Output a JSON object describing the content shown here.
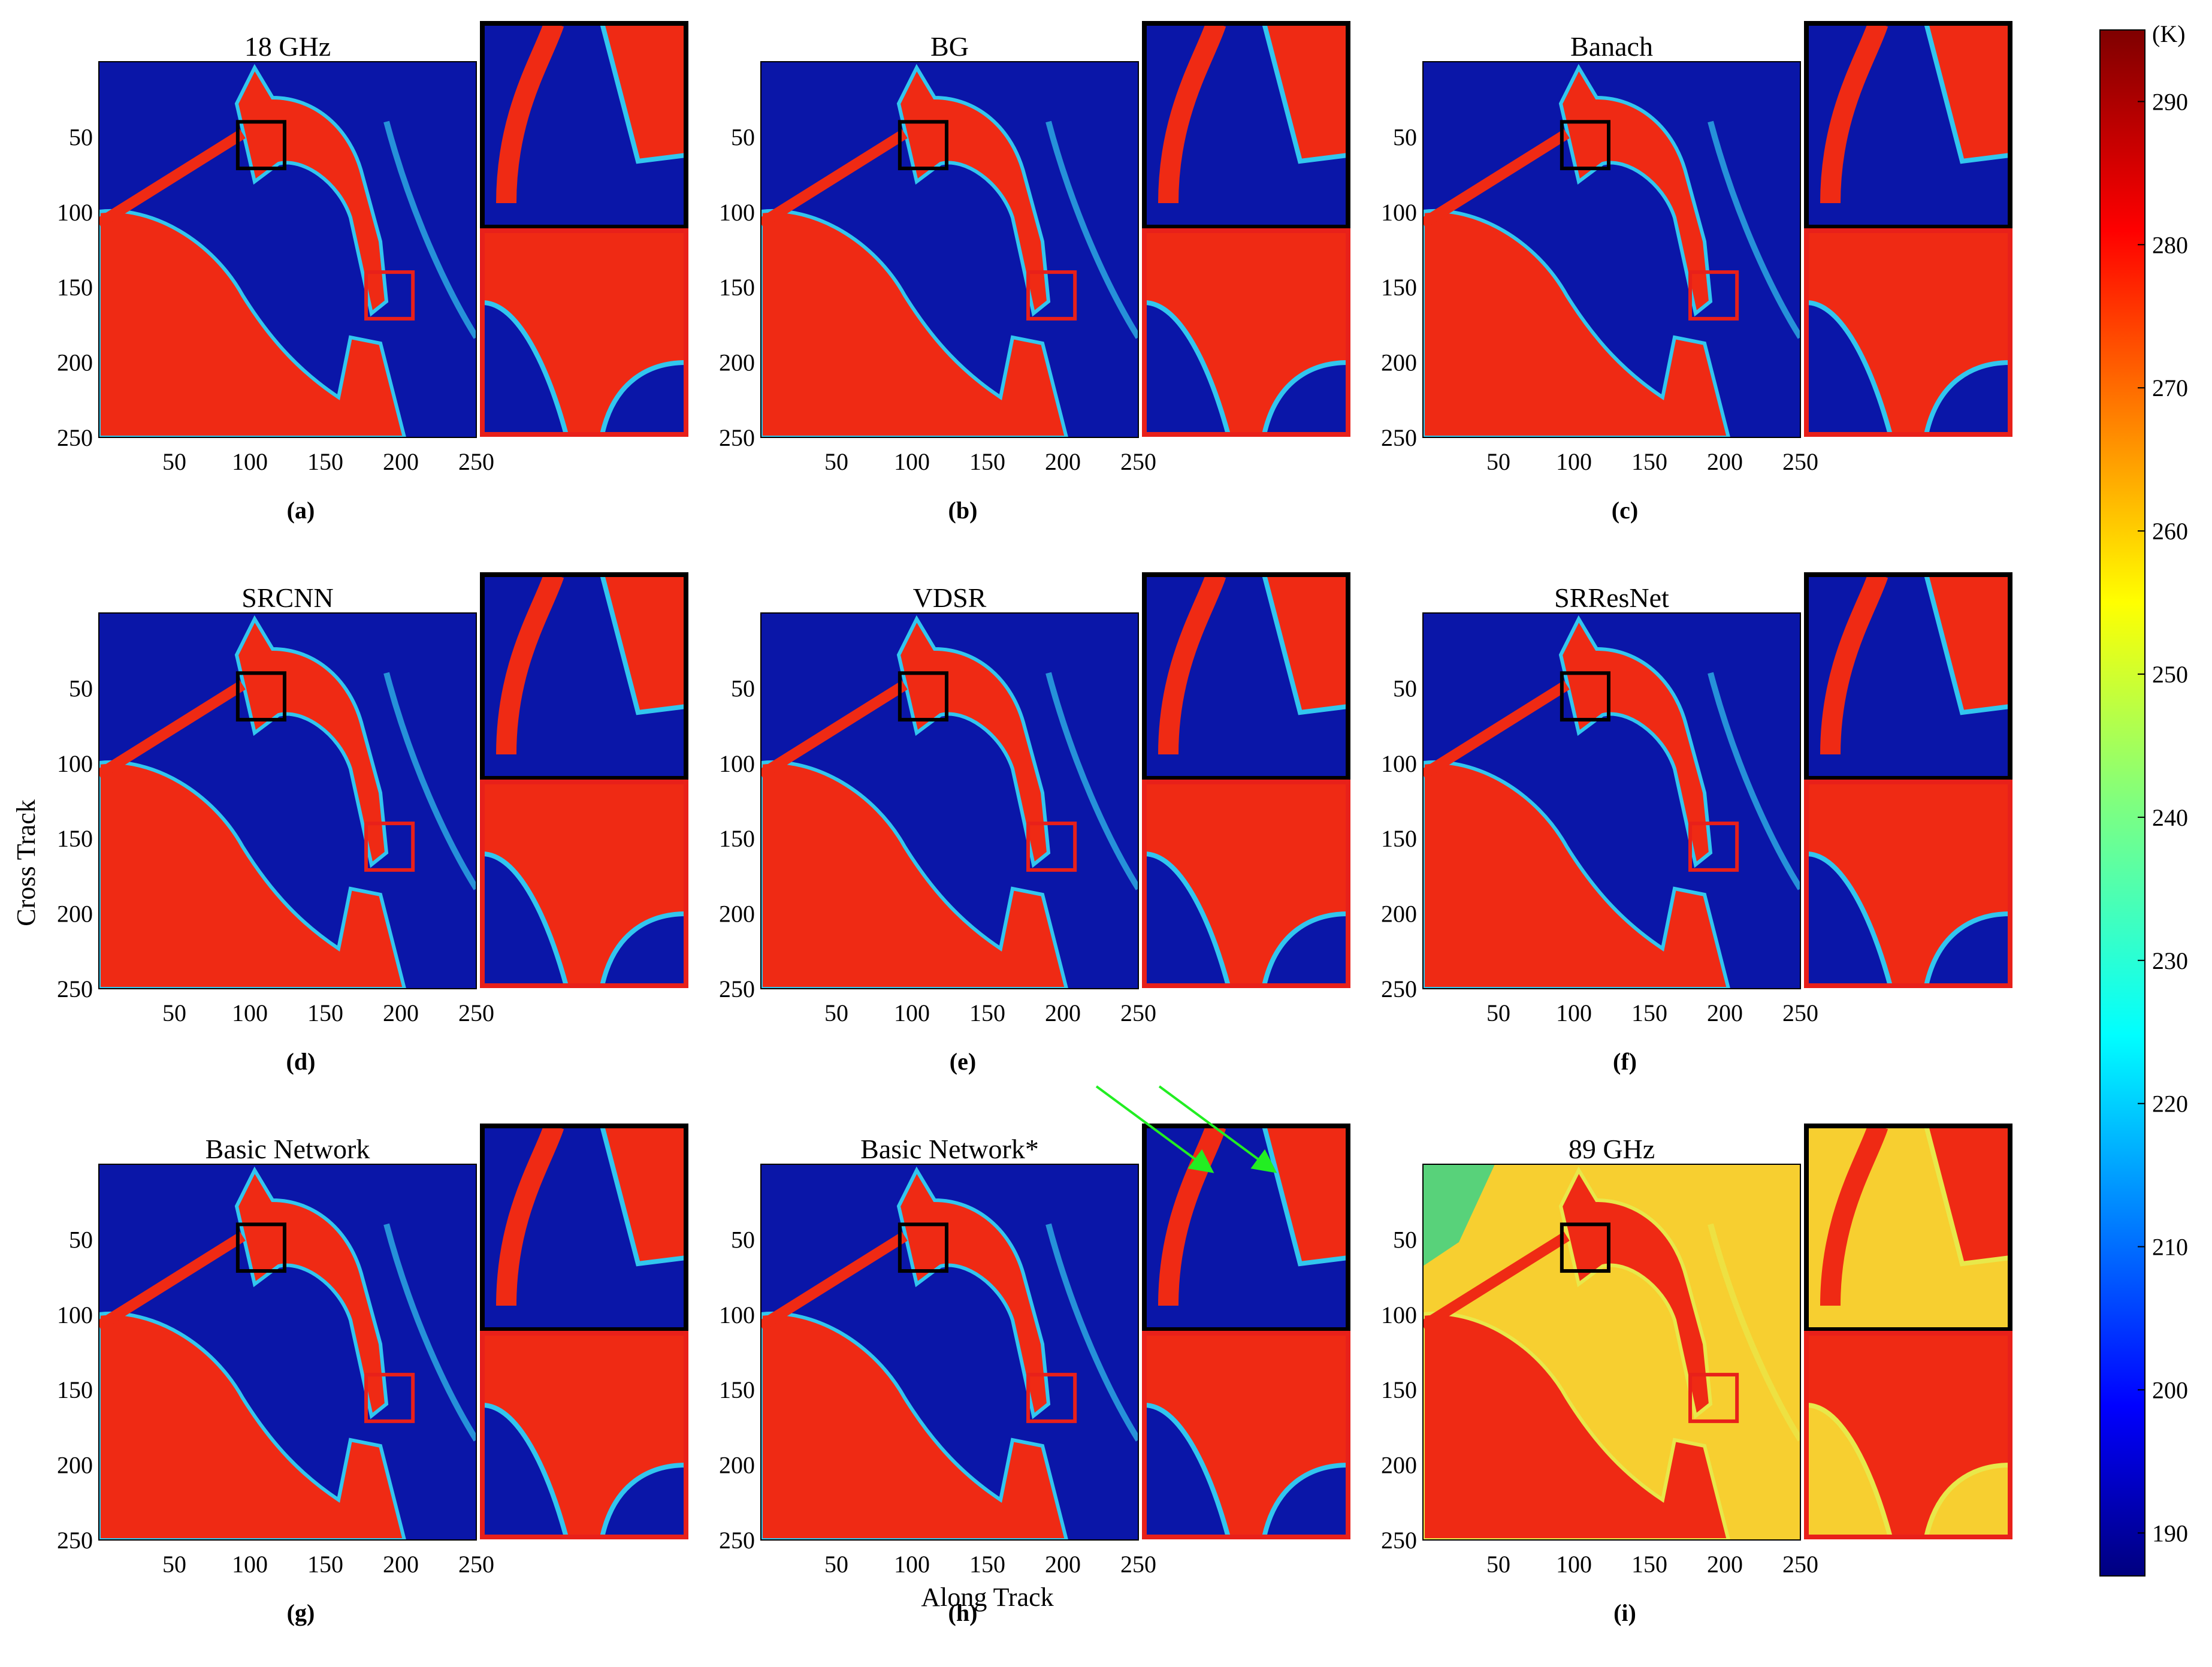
{
  "figure": {
    "panels": [
      {
        "id": "a",
        "title": "18 GHz",
        "label": "(a)",
        "palette": "cold",
        "arrows": false
      },
      {
        "id": "b",
        "title": "BG",
        "label": "(b)",
        "palette": "cold",
        "arrows": false
      },
      {
        "id": "c",
        "title": "Banach",
        "label": "(c)",
        "palette": "cold",
        "arrows": false
      },
      {
        "id": "d",
        "title": "SRCNN",
        "label": "(d)",
        "palette": "cold",
        "arrows": false
      },
      {
        "id": "e",
        "title": "VDSR",
        "label": "(e)",
        "palette": "cold",
        "arrows": false
      },
      {
        "id": "f",
        "title": "SRResNet",
        "label": "(f)",
        "palette": "cold",
        "arrows": false
      },
      {
        "id": "g",
        "title": "Basic Network",
        "label": "(g)",
        "palette": "cold",
        "arrows": false
      },
      {
        "id": "h",
        "title": "Basic Network*",
        "label": "(h)",
        "palette": "cold",
        "arrows": true
      },
      {
        "id": "i",
        "title": "89 GHz",
        "label": "(i)",
        "palette": "warm",
        "arrows": false
      }
    ],
    "axes": {
      "xlabel": "Along Track",
      "ylabel": "Cross Track",
      "x_ticks": [
        "50",
        "100",
        "150",
        "200",
        "250"
      ],
      "y_ticks": [
        "50",
        "100",
        "150",
        "200",
        "250"
      ],
      "range": [
        0,
        250
      ]
    },
    "colorbar": {
      "unit": "(K)",
      "ticks": [
        "290",
        "280",
        "270",
        "260",
        "250",
        "240",
        "230",
        "220",
        "210",
        "200",
        "190"
      ],
      "range": [
        187,
        295
      ],
      "colormap": "jet"
    },
    "zoom_boxes": [
      {
        "color": "#000000",
        "x": [
          92,
          123
        ],
        "y": [
          40,
          71
        ]
      },
      {
        "color": "#e8201a",
        "x": [
          177,
          208
        ],
        "y": [
          140,
          171
        ]
      }
    ],
    "colors": {
      "cold": "#0a16a8",
      "warm": "#ef2a14",
      "box_black": "#000000",
      "box_red": "#e8201a",
      "arrow": "#22ee22"
    }
  }
}
